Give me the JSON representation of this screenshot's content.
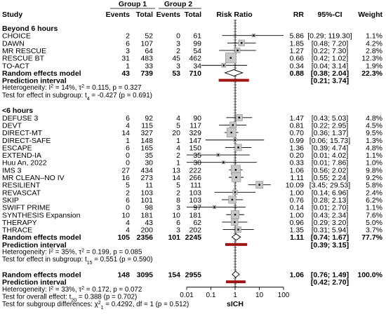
{
  "header": {
    "group1": "Group 1",
    "group2": "Group 2",
    "study": "Study",
    "events1": "Events",
    "total1": "Total",
    "events2": "Events",
    "total2": "Total",
    "risk_ratio": "Risk Ratio",
    "rr": "RR",
    "ci": "95%-CI",
    "weight": "Weight"
  },
  "axis": {
    "label": "sICH",
    "ticks": [
      "0.01",
      "0.1",
      "1",
      "10",
      "100"
    ],
    "tick_values": [
      0.01,
      0.1,
      1,
      10,
      100
    ],
    "scale": "log"
  },
  "colors": {
    "line": "#000000",
    "box_fill": "#c8c8c8",
    "box_stroke": "#8c8c8c",
    "prediction_bar": "#a01414",
    "guide": "#9a9a9a"
  },
  "chart_data": {
    "type": "forest",
    "xlabel": "sICH",
    "xlim": [
      0.01,
      100
    ],
    "subgroups": [
      {
        "title": "Beyond 6 hours",
        "studies": [
          {
            "name": "CHOICE",
            "e1": "2",
            "n1": "52",
            "e2": "0",
            "n2": "61",
            "rr": 5.86,
            "lo": 0.29,
            "hi": 119.3,
            "rr_text": "5.86",
            "ci_text": "[0.29; 119.30]",
            "weight": "1.1%"
          },
          {
            "name": "DAWN",
            "e1": "6",
            "n1": "107",
            "e2": "3",
            "n2": "99",
            "rr": 1.85,
            "lo": 0.48,
            "hi": 7.2,
            "rr_text": "1.85",
            "ci_text": "[0.48; 7.20]",
            "weight": "4.2%"
          },
          {
            "name": "MR RESCUE",
            "e1": "3",
            "n1": "64",
            "e2": "2",
            "n2": "54",
            "rr": 1.27,
            "lo": 0.22,
            "hi": 7.3,
            "rr_text": "1.27",
            "ci_text": "[0.22; 7.30]",
            "weight": "2.8%"
          },
          {
            "name": "RESCUE BT",
            "e1": "31",
            "n1": "483",
            "e2": "45",
            "n2": "462",
            "rr": 0.66,
            "lo": 0.42,
            "hi": 1.02,
            "rr_text": "0.66",
            "ci_text": "[0.42; 1.02]",
            "weight": "12.3%"
          },
          {
            "name": "TO-ACT",
            "e1": "1",
            "n1": "33",
            "e2": "3",
            "n2": "34",
            "rr": 0.34,
            "lo": 0.04,
            "hi": 3.14,
            "rr_text": "0.34",
            "ci_text": "[0.04; 3.14]",
            "weight": "1.9%"
          }
        ],
        "pooled": {
          "label": "Random effects model",
          "e1": "43",
          "n1": "739",
          "e2": "53",
          "n2": "710",
          "rr": 0.88,
          "lo": 0.38,
          "hi": 2.04,
          "rr_text": "0.88",
          "ci_text": "[0.38; 2.04]",
          "weight": "22.3%"
        },
        "prediction": {
          "label": "Prediction interval",
          "lo": 0.21,
          "hi": 3.74,
          "ci_text": "[0.21; 3.74]"
        },
        "heterogeneity": [
          "Heterogeneity: I² = 14%, τ² = 0.115, p = 0.327",
          "Test for effect in subgroup: t₄ = -0.427 (p = 0.691)"
        ]
      },
      {
        "title": "<6 hours",
        "studies": [
          {
            "name": "DEFUSE 3",
            "e1": "6",
            "n1": "92",
            "e2": "4",
            "n2": "90",
            "rr": 1.47,
            "lo": 0.43,
            "hi": 5.03,
            "rr_text": "1.47",
            "ci_text": "[0.43; 5.03]",
            "weight": "4.8%"
          },
          {
            "name": "DEVT",
            "e1": "4",
            "n1": "115",
            "e2": "5",
            "n2": "117",
            "rr": 0.81,
            "lo": 0.22,
            "hi": 2.95,
            "rr_text": "0.81",
            "ci_text": "[0.22; 2.95]",
            "weight": "4.5%"
          },
          {
            "name": "DIRECT-MT",
            "e1": "14",
            "n1": "327",
            "e2": "20",
            "n2": "329",
            "rr": 0.7,
            "lo": 0.36,
            "hi": 1.37,
            "rr_text": "0.70",
            "ci_text": "[0.36; 1.37]",
            "weight": "9.5%"
          },
          {
            "name": "DIRECT-SAFE",
            "e1": "1",
            "n1": "148",
            "e2": "1",
            "n2": "147",
            "rr": 0.99,
            "lo": 0.06,
            "hi": 15.73,
            "rr_text": "0.99",
            "ci_text": "[0.06; 15.73]",
            "weight": "1.3%"
          },
          {
            "name": "ESCAPE",
            "e1": "6",
            "n1": "165",
            "e2": "4",
            "n2": "150",
            "rr": 1.36,
            "lo": 0.39,
            "hi": 4.74,
            "rr_text": "1.36",
            "ci_text": "[0.39; 4.74]",
            "weight": "4.8%"
          },
          {
            "name": "EXTEND-IA",
            "e1": "0",
            "n1": "35",
            "e2": "2",
            "n2": "35",
            "rr": 0.2,
            "lo": 0.01,
            "hi": 4.02,
            "rr_text": "0.20",
            "ci_text": "[0.01; 4.02]",
            "weight": "1.1%"
          },
          {
            "name": "Huu An, 2022",
            "e1": "0",
            "n1": "30",
            "e2": "1",
            "n2": "30",
            "rr": 0.33,
            "lo": 0.01,
            "hi": 7.86,
            "rr_text": "0.33",
            "ci_text": "[0.01; 7.86]",
            "weight": "1.0%"
          },
          {
            "name": "IMS 3",
            "e1": "27",
            "n1": "434",
            "e2": "13",
            "n2": "222",
            "rr": 1.06,
            "lo": 0.56,
            "hi": 2.02,
            "rr_text": "1.06",
            "ci_text": "[0.56; 2.02]",
            "weight": "9.8%"
          },
          {
            "name": "MR CLEAN–NO IV",
            "e1": "16",
            "n1": "273",
            "e2": "14",
            "n2": "266",
            "rr": 1.11,
            "lo": 0.55,
            "hi": 2.24,
            "rr_text": "1.11",
            "ci_text": "[0.55; 2.24]",
            "weight": "9.2%"
          },
          {
            "name": "RESILIENT",
            "e1": "5",
            "n1": "11",
            "e2": "5",
            "n2": "111",
            "rr": 10.09,
            "lo": 3.45,
            "hi": 29.53,
            "rr_text": "10.09",
            "ci_text": "[3.45; 29.53]",
            "weight": "5.8%"
          },
          {
            "name": "REVASCAT",
            "e1": "2",
            "n1": "103",
            "e2": "2",
            "n2": "103",
            "rr": 1.0,
            "lo": 0.14,
            "hi": 6.96,
            "rr_text": "1.00",
            "ci_text": "[0.14; 6.96]",
            "weight": "2.4%"
          },
          {
            "name": "SKIP",
            "e1": "6",
            "n1": "101",
            "e2": "8",
            "n2": "103",
            "rr": 0.76,
            "lo": 0.28,
            "hi": 2.13,
            "rr_text": "0.76",
            "ci_text": "[0.28; 2.13]",
            "weight": "6.2%"
          },
          {
            "name": "SWIFT PRIME",
            "e1": "0",
            "n1": "98",
            "e2": "3",
            "n2": "97",
            "rr": 0.14,
            "lo": 0.01,
            "hi": 2.7,
            "rr_text": "0.14",
            "ci_text": "[0.01; 2.70]",
            "weight": "1.1%"
          },
          {
            "name": "SYNTHESIS Expansion",
            "e1": "10",
            "n1": "181",
            "e2": "10",
            "n2": "181",
            "rr": 1.0,
            "lo": 0.43,
            "hi": 2.34,
            "rr_text": "1.00",
            "ci_text": "[0.43; 2.34]",
            "weight": "7.6%"
          },
          {
            "name": "THERAPY",
            "e1": "4",
            "n1": "43",
            "e2": "6",
            "n2": "62",
            "rr": 0.96,
            "lo": 0.29,
            "hi": 3.2,
            "rr_text": "0.96",
            "ci_text": "[0.29; 3.20]",
            "weight": "5.0%"
          },
          {
            "name": "THRACE",
            "e1": "4",
            "n1": "200",
            "e2": "3",
            "n2": "202",
            "rr": 1.35,
            "lo": 0.31,
            "hi": 5.94,
            "rr_text": "1.35",
            "ci_text": "[0.31; 5.94]",
            "weight": "3.7%"
          }
        ],
        "pooled": {
          "label": "Random effects model",
          "e1": "105",
          "n1": "2356",
          "e2": "101",
          "n2": "2245",
          "rr": 1.11,
          "lo": 0.74,
          "hi": 1.67,
          "rr_text": "1.11",
          "ci_text": "[0.74; 1.67]",
          "weight": "77.7%"
        },
        "prediction": {
          "label": "Prediction interval",
          "lo": 0.39,
          "hi": 3.15,
          "ci_text": "[0.39; 3.15]"
        },
        "heterogeneity": [
          "Heterogeneity: I² = 35%, τ² = 0.199, p = 0.085",
          "Test for effect in subgroup: t₁₅ = 0.551 (p = 0.590)"
        ]
      }
    ],
    "overall": {
      "pooled": {
        "label": "Random effects model",
        "e1": "148",
        "n1": "3095",
        "e2": "154",
        "n2": "2955",
        "rr": 1.06,
        "lo": 0.76,
        "hi": 1.49,
        "rr_text": "1.06",
        "ci_text": "[0.76; 1.49]",
        "weight": "100.0%"
      },
      "prediction": {
        "label": "Prediction interval",
        "lo": 0.42,
        "hi": 2.7,
        "ci_text": "[0.42; 2.70]"
      },
      "notes": [
        "Heterogeneity: I² = 33%, τ² = 0.172, p = 0.072",
        "Test for overall effect: t₂₀ = 0.388 (p = 0.702)",
        "Test for subgroup differences: χ²₁ = 0.4292, df = 1 (p = 0.512)"
      ]
    }
  }
}
